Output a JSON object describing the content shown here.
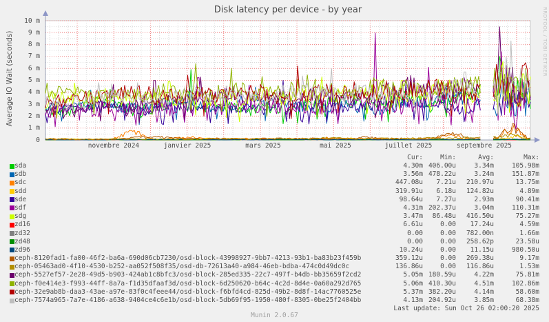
{
  "title": "Disk latency per device - by year",
  "y_axis_label": "Average IO Wait (seconds)",
  "watermark": "RRDTOOL / TOBI OETIKER",
  "footer_version": "Munin 2.0.67",
  "last_update": "Last update: Sun Oct 26 02:00:20 2025",
  "legend": {
    "headers": [
      "Cur:",
      "Min:",
      "Avg:",
      "Max:"
    ]
  },
  "chart_data": {
    "type": "line",
    "title": "Disk latency per device - by year",
    "ylabel": "Average IO Wait (seconds)",
    "y_unit": "seconds",
    "ylim": [
      0,
      0.01
    ],
    "grid": true,
    "y_ticks": [
      "0",
      "1 m",
      "2 m",
      "3 m",
      "4 m",
      "5 m",
      "6 m",
      "7 m",
      "8 m",
      "9 m",
      "10 m"
    ],
    "x_ticks": [
      {
        "label": "novembre 2024",
        "f": 0.1406
      },
      {
        "label": "janvier 2025",
        "f": 0.2926
      },
      {
        "label": "mars 2025",
        "f": 0.4489
      },
      {
        "label": "mai 2025",
        "f": 0.598
      },
      {
        "label": "juillet 2025",
        "f": 0.7486
      },
      {
        "label": "septembre 2025",
        "f": 0.9048
      }
    ],
    "data_gap_x": [
      0.897,
      0.921
    ],
    "series": [
      {
        "label": "sda",
        "color": "#00CC00",
        "cur": "4.30m",
        "min": "406.00u",
        "avg": "3.34m",
        "max": "105.98m",
        "render": {
          "seed": 1,
          "mode": "cluster",
          "band": [
            2.5,
            3.6
          ],
          "amp": 0.55,
          "bumps": [],
          "peaks": [
            {
              "x": 0.3,
              "v": 5.9
            },
            {
              "x": 0.938,
              "v": 8.4
            },
            {
              "x": 0.965,
              "v": 6.0
            }
          ]
        }
      },
      {
        "label": "sdb",
        "color": "#0066B3",
        "cur": "3.56m",
        "min": "478.22u",
        "avg": "3.24m",
        "max": "151.87m",
        "render": {
          "seed": 2,
          "mode": "cluster",
          "band": [
            2.6,
            3.3
          ],
          "amp": 0.5,
          "bumps": [],
          "peaks": [
            {
              "x": 0.298,
              "v": 5.2
            },
            {
              "x": 0.945,
              "v": 6.4
            }
          ]
        }
      },
      {
        "label": "sdc",
        "color": "#FF8000",
        "cur": "447.08u",
        "min": "7.21u",
        "avg": "210.97u",
        "max": "13.75m",
        "render": {
          "seed": 3,
          "mode": "low",
          "band": [
            0.06,
            0.08
          ],
          "amp": 0.05,
          "bumps": [
            [
              0.13,
              0.23,
              0.8
            ],
            [
              0.24,
              0.34,
              0.3
            ],
            [
              0.55,
              0.62,
              0.15
            ],
            [
              0.79,
              0.88,
              0.45
            ],
            [
              0.925,
              1.0,
              1.25
            ]
          ],
          "peaks": []
        }
      },
      {
        "label": "sdd",
        "color": "#FFCC00",
        "cur": "319.91u",
        "min": "6.18u",
        "avg": "124.82u",
        "max": "4.89m",
        "render": {
          "seed": 4,
          "mode": "low",
          "band": [
            0.05,
            0.06
          ],
          "amp": 0.04,
          "bumps": [
            [
              0.925,
              1.0,
              0.3
            ]
          ],
          "peaks": []
        }
      },
      {
        "label": "sde",
        "color": "#330099",
        "cur": "98.64u",
        "min": "7.27u",
        "avg": "2.93m",
        "max": "90.41m",
        "render": {
          "seed": 5,
          "mode": "cluster",
          "band": [
            2.45,
            3.15
          ],
          "amp": 0.45,
          "bumps": [],
          "peaks": [
            {
              "x": 0.49,
              "v": 5.0
            }
          ]
        }
      },
      {
        "label": "sdf",
        "color": "#990099",
        "cur": "4.31m",
        "min": "202.37u",
        "avg": "3.04m",
        "max": "110.31m",
        "render": {
          "seed": 6,
          "mode": "cluster",
          "band": [
            2.3,
            3.5
          ],
          "amp": 0.7,
          "bumps": [],
          "peaks": [
            {
              "x": 0.315,
              "v": 6.6
            },
            {
              "x": 0.68,
              "v": 6.9
            },
            {
              "x": 0.79,
              "v": 6.1
            },
            {
              "x": 0.94,
              "v": 7.4
            }
          ]
        }
      },
      {
        "label": "sdg",
        "color": "#CCFF00",
        "cur": "3.47m",
        "min": "86.48u",
        "avg": "416.50u",
        "max": "75.27m",
        "render": {
          "seed": 7,
          "mode": "cluster",
          "band": [
            3.3,
            4.1
          ],
          "amp": 0.75,
          "bumps": [],
          "peaks": [
            {
              "x": 0.255,
              "v": 6.2
            },
            {
              "x": 0.735,
              "v": 6.3
            },
            {
              "x": 0.942,
              "v": 7.9
            },
            {
              "x": 0.985,
              "v": 7.0
            }
          ]
        }
      },
      {
        "label": "zd16",
        "color": "#FF0000",
        "cur": "6.61u",
        "min": "0.00",
        "avg": "17.24u",
        "max": "4.59m",
        "render": {
          "seed": 8,
          "mode": "low",
          "band": [
            0.02,
            0.02
          ],
          "amp": 0.012,
          "bumps": [],
          "peaks": []
        }
      },
      {
        "label": "zd32",
        "color": "#808080",
        "cur": "0.00",
        "min": "0.00",
        "avg": "782.00n",
        "max": "1.66m",
        "render": {
          "seed": 9,
          "mode": "low",
          "band": [
            0.008,
            0.008
          ],
          "amp": 0.004,
          "bumps": [],
          "peaks": []
        }
      },
      {
        "label": "zd48",
        "color": "#008F00",
        "cur": "0.00",
        "min": "0.00",
        "avg": "258.62p",
        "max": "23.58u",
        "render": {
          "seed": 10,
          "mode": "low",
          "band": [
            0.006,
            0.006
          ],
          "amp": 0.003,
          "bumps": [],
          "peaks": []
        }
      },
      {
        "label": "zd96",
        "color": "#00487D",
        "cur": "10.24u",
        "min": "0.00",
        "avg": "11.15u",
        "max": "980.50u",
        "render": {
          "seed": 11,
          "mode": "low",
          "band": [
            0.02,
            0.025
          ],
          "amp": 0.012,
          "bumps": [],
          "peaks": []
        }
      },
      {
        "label": "ceph-8120fad1-fa00-46f2-ba6a-690d06cb7230/osd-block-43998927-9bb7-4213-93b1-ba83b23f459b",
        "color": "#B35A00",
        "cur": "359.12u",
        "min": "0.00",
        "avg": "269.38u",
        "max": "9.17m",
        "render": {
          "seed": 12,
          "mode": "low",
          "band": [
            0.07,
            0.1
          ],
          "amp": 0.06,
          "bumps": [
            [
              0.13,
              0.3,
              0.3
            ],
            [
              0.62,
              0.7,
              0.2
            ],
            [
              0.79,
              0.885,
              0.55
            ],
            [
              0.925,
              1.0,
              1.35
            ]
          ],
          "peaks": []
        }
      },
      {
        "label": "ceph-05463ad0-4f10-4530-b252-aa052f508f35/osd-db-72613a40-a984-46eb-bdba-474c0d49dc0c",
        "color": "#B38F00",
        "cur": "136.86u",
        "min": "0.00",
        "avg": "116.86u",
        "max": "1.53m",
        "render": {
          "seed": 13,
          "mode": "low",
          "band": [
            0.1,
            0.13
          ],
          "amp": 0.05,
          "bumps": [
            [
              0.925,
              1.0,
              0.3
            ]
          ],
          "peaks": []
        }
      },
      {
        "label": "ceph-5527ef57-2e28-49d5-b903-424ab1c8bfc3/osd-block-285ed335-22c7-497f-b4db-bb35659f2cd2",
        "color": "#6B006B",
        "cur": "5.05m",
        "min": "180.59u",
        "avg": "4.22m",
        "max": "75.81m",
        "render": {
          "seed": 14,
          "mode": "cluster",
          "band": [
            2.8,
            4.5
          ],
          "amp": 0.7,
          "bumps": [],
          "peaks": [
            {
              "x": 0.225,
              "v": 6.3
            },
            {
              "x": 0.937,
              "v": 9.9
            }
          ]
        }
      },
      {
        "label": "ceph-f0e414e3-f993-44ff-8a7a-f1d35dfaaf3d/osd-block-6d250620-b64c-4c2d-8d4e-0a60a292d765",
        "color": "#8FB300",
        "cur": "5.06m",
        "min": "410.30u",
        "avg": "4.51m",
        "max": "102.86m",
        "render": {
          "seed": 15,
          "mode": "cluster",
          "band": [
            3.7,
            4.7
          ],
          "amp": 0.65,
          "bumps": [],
          "peaks": [
            {
              "x": 0.31,
              "v": 6.4
            },
            {
              "x": 0.948,
              "v": 6.6
            }
          ]
        }
      },
      {
        "label": "ceph-32e9ab8b-daa3-43ae-a97e-83f0c4feee44/osd-block-f6bfd4cd-825d-49b2-8d8f-14ac7760525e",
        "color": "#B30000",
        "cur": "5.37m",
        "min": "382.20u",
        "avg": "4.14m",
        "max": "58.60m",
        "render": {
          "seed": 16,
          "mode": "cluster",
          "band": [
            3.3,
            4.4
          ],
          "amp": 0.7,
          "bumps": [],
          "peaks": [
            {
              "x": 0.52,
              "v": 6.2
            },
            {
              "x": 0.955,
              "v": 6.6
            },
            {
              "x": 0.985,
              "v": 7.9
            }
          ]
        }
      },
      {
        "label": "ceph-7574a965-7a7e-4186-a638-9404ce4c6e1b/osd-block-5db69f95-1950-480f-8305-0be25f2404bb",
        "color": "#BEBEBE",
        "cur": "4.13m",
        "min": "204.92u",
        "avg": "3.85m",
        "max": "68.38m",
        "render": {
          "seed": 17,
          "mode": "cluster",
          "band": [
            3.2,
            4.3
          ],
          "amp": 0.7,
          "bumps": [],
          "peaks": [
            {
              "x": 0.865,
              "v": 7.2
            },
            {
              "x": 0.96,
              "v": 8.3
            }
          ]
        }
      }
    ]
  }
}
